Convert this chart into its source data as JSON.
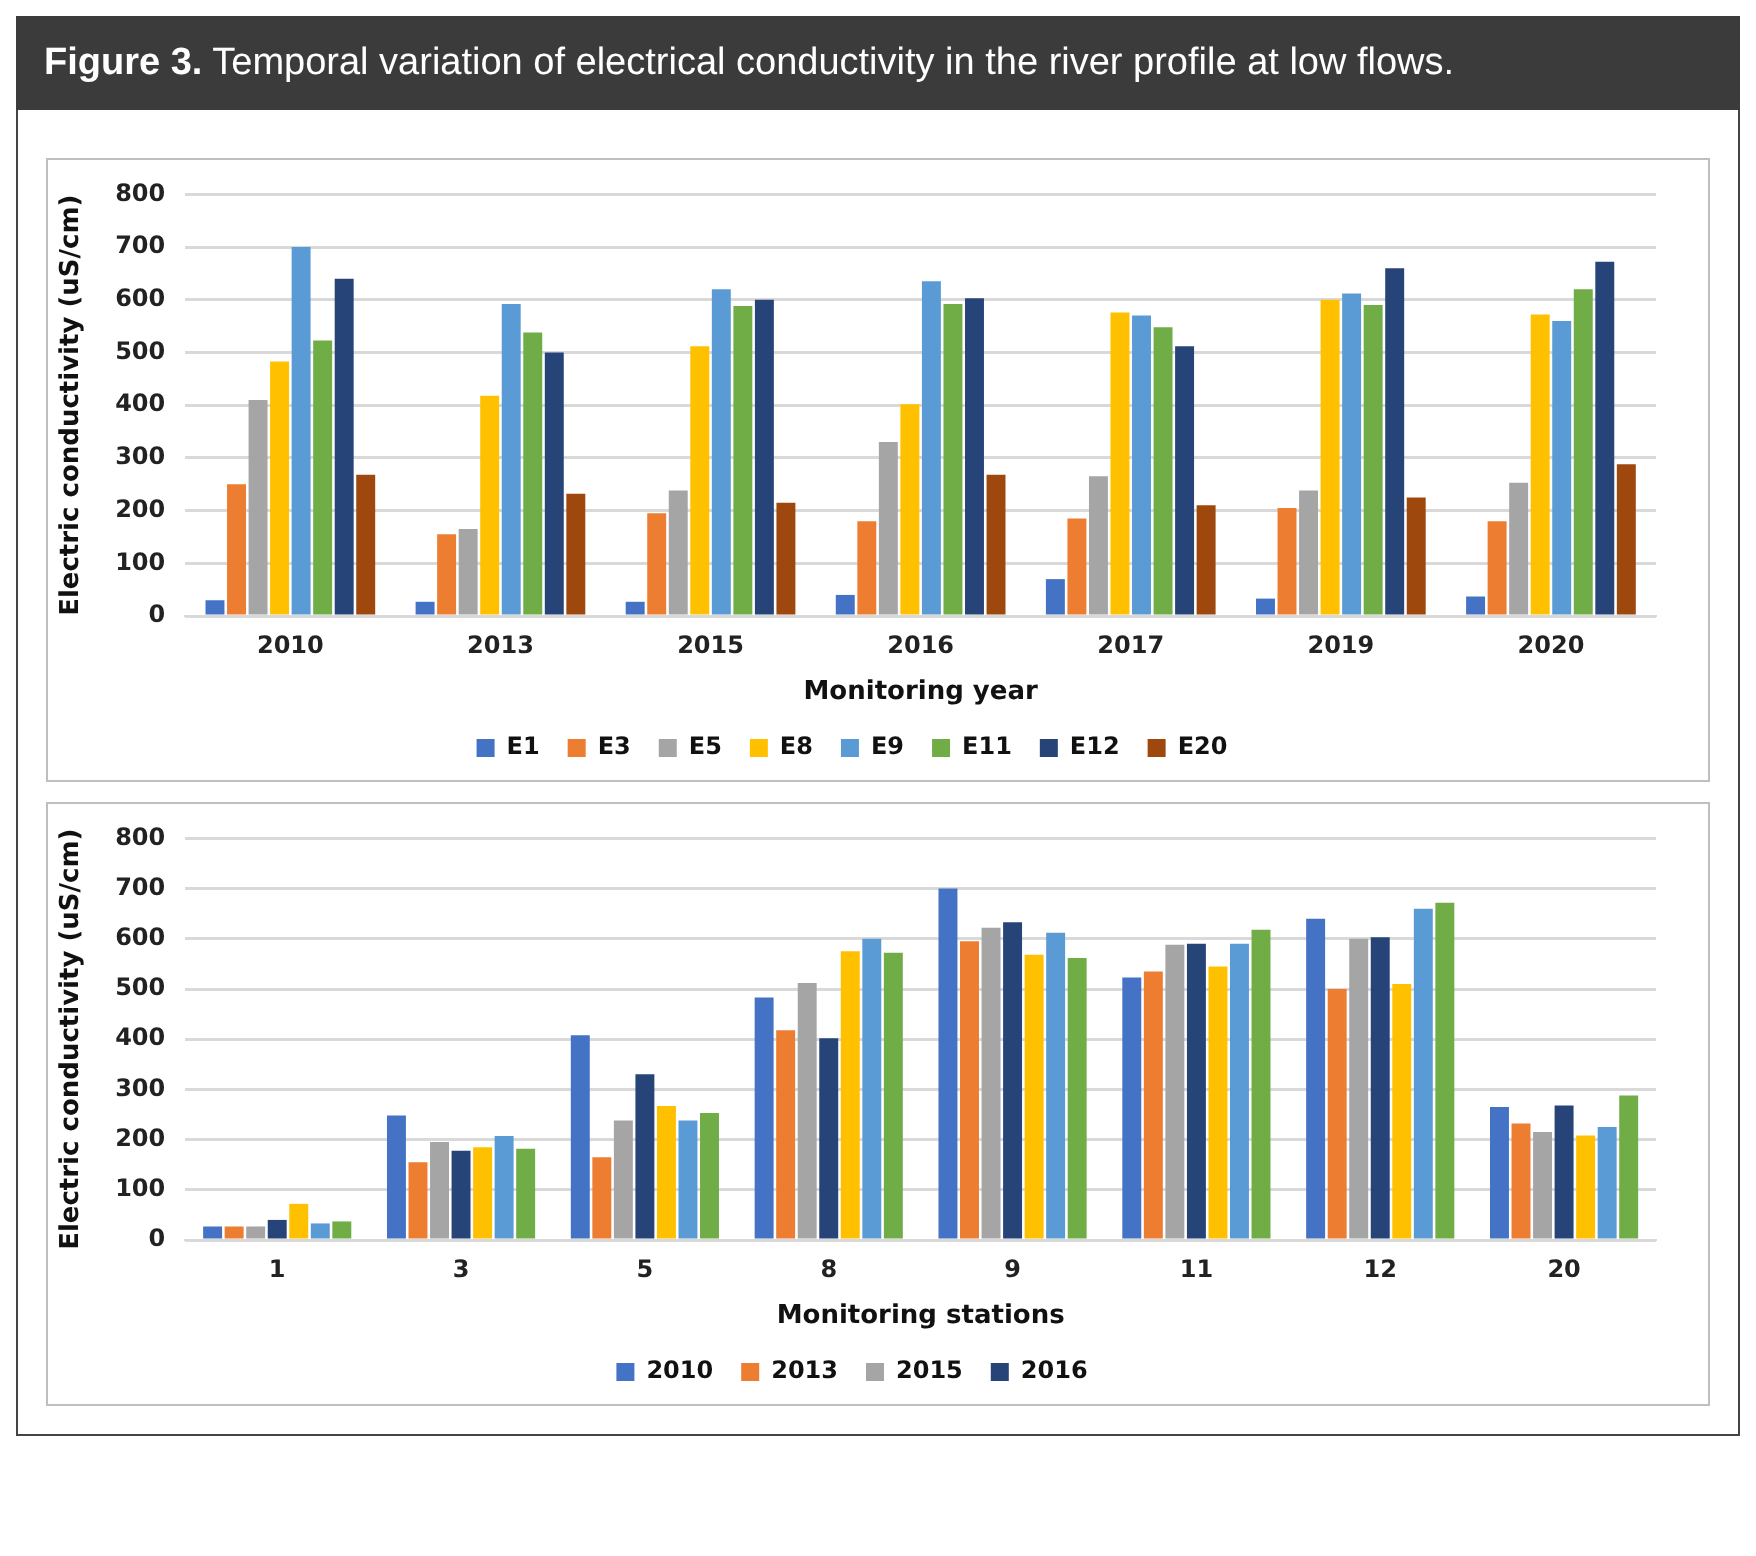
{
  "chart_data": [
    {
      "type": "bar",
      "title": "Figure 3. Temporal variation of electrical conductivity in the river profile at low flows.",
      "xlabel": "Monitoring year",
      "ylabel": "Electric conductivity (uS/cm)",
      "categories": [
        "2010",
        "2013",
        "2015",
        "2016",
        "2017",
        "2019",
        "2020"
      ],
      "ylim": [
        0,
        800
      ],
      "yticks": [
        0,
        100,
        200,
        300,
        400,
        500,
        600,
        700,
        800
      ],
      "grid": "y",
      "legend": "bottom",
      "series": [
        {
          "name": "E1",
          "color": "#4472c4",
          "values": [
            30,
            27,
            27,
            40,
            70,
            33,
            37
          ]
        },
        {
          "name": "E3",
          "color": "#ed7d31",
          "values": [
            250,
            155,
            195,
            180,
            185,
            205,
            180
          ]
        },
        {
          "name": "E5",
          "color": "#a5a5a5",
          "values": [
            410,
            165,
            238,
            330,
            265,
            238,
            253
          ]
        },
        {
          "name": "E8",
          "color": "#ffc000",
          "values": [
            483,
            418,
            512,
            402,
            576,
            600,
            572
          ]
        },
        {
          "name": "E9",
          "color": "#5b9bd5",
          "values": [
            700,
            592,
            620,
            635,
            570,
            612,
            560
          ]
        },
        {
          "name": "E11",
          "color": "#70ad47",
          "values": [
            523,
            538,
            588,
            592,
            548,
            590,
            620
          ]
        },
        {
          "name": "E12",
          "color": "#264478",
          "values": [
            640,
            500,
            600,
            603,
            512,
            660,
            672
          ]
        },
        {
          "name": "E20",
          "color": "#9e480e",
          "values": [
            268,
            232,
            215,
            268,
            210,
            225,
            288
          ]
        }
      ]
    },
    {
      "type": "bar",
      "xlabel": "Monitoring stations",
      "ylabel": "Electric conductivity (uS/cm)",
      "categories": [
        "1",
        "3",
        "5",
        "8",
        "9",
        "11",
        "12",
        "20"
      ],
      "ylim": [
        0,
        800
      ],
      "yticks": [
        0,
        100,
        200,
        300,
        400,
        500,
        600,
        700,
        800
      ],
      "grid": "y",
      "legend": "bottom",
      "series": [
        {
          "name": "2010",
          "color": "#4472c4",
          "values": [
            27,
            248,
            408,
            483,
            700,
            523,
            640,
            265
          ]
        },
        {
          "name": "2013",
          "color": "#ed7d31",
          "values": [
            27,
            155,
            165,
            418,
            595,
            535,
            500,
            232
          ]
        },
        {
          "name": "2015",
          "color": "#a5a5a5",
          "values": [
            27,
            195,
            238,
            512,
            622,
            588,
            600,
            215
          ]
        },
        {
          "name": "2016",
          "color": "#264478",
          "values": [
            40,
            178,
            330,
            402,
            633,
            590,
            603,
            268
          ]
        },
        {
          "color": "#ffc000",
          "values": [
            72,
            185,
            267,
            575,
            568,
            545,
            510,
            208
          ]
        },
        {
          "color": "#5b9bd5",
          "values": [
            33,
            207,
            238,
            600,
            612,
            590,
            660,
            225
          ]
        },
        {
          "color": "#70ad47",
          "values": [
            37,
            182,
            253,
            572,
            562,
            618,
            672,
            288
          ]
        }
      ]
    }
  ]
}
